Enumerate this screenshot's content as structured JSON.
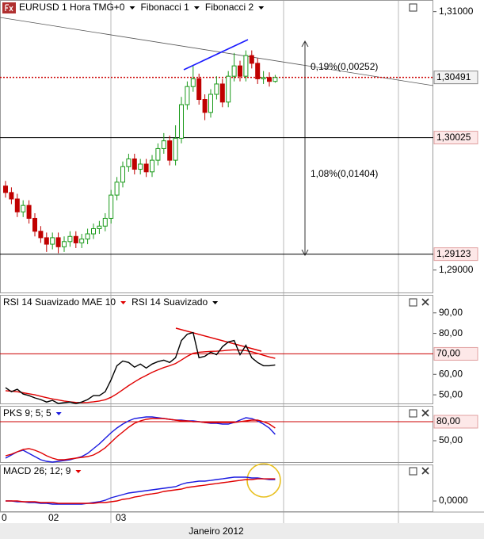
{
  "chart_data": [
    {
      "type": "candlestick",
      "title": "EURUSD 1 Hora TMG+0",
      "menus": [
        "Fibonacci 1",
        "Fibonacci 2"
      ],
      "ylim": [
        1.2882,
        1.3109
      ],
      "yticks": [
        {
          "value": 1.31,
          "label": "1,31000"
        },
        {
          "value": 1.29,
          "label": "1,29000"
        }
      ],
      "up_color": "#1a9a1a",
      "down_color": "#c00000",
      "open": [
        1.2965,
        1.296,
        1.2955,
        1.2945,
        1.295,
        1.294,
        1.293,
        1.2925,
        1.292,
        1.2925,
        1.2918,
        1.2922,
        1.2926,
        1.2921,
        1.2924,
        1.2928,
        1.2932,
        1.2934,
        1.294,
        1.2958,
        1.2968,
        1.298,
        1.2986,
        1.2978,
        1.2982,
        1.2976,
        1.2985,
        1.2994,
        1.3,
        1.2985,
        1.3002,
        1.3028,
        1.3042,
        1.3048,
        1.3032,
        1.3022,
        1.3036,
        1.3044,
        1.303,
        1.305,
        1.3058,
        1.305,
        1.3066,
        1.306,
        1.3048,
        1.3049,
        1.3046
      ],
      "high": [
        1.2969,
        1.2964,
        1.2959,
        1.2954,
        1.2954,
        1.2944,
        1.2934,
        1.2929,
        1.2929,
        1.2929,
        1.2926,
        1.293,
        1.293,
        1.2928,
        1.2932,
        1.2936,
        1.2938,
        1.2944,
        1.2962,
        1.2972,
        1.2984,
        1.299,
        1.299,
        1.2986,
        1.2986,
        1.2989,
        1.2998,
        1.3006,
        1.3004,
        1.3012,
        1.3034,
        1.3046,
        1.3058,
        1.3052,
        1.3036,
        1.304,
        1.305,
        1.3048,
        1.3054,
        1.3068,
        1.3062,
        1.307,
        1.307,
        1.3064,
        1.3054,
        1.3053,
        1.3051
      ],
      "low": [
        1.2956,
        1.2951,
        1.2941,
        1.2941,
        1.2936,
        1.2926,
        1.2921,
        1.2914,
        1.2916,
        1.2913,
        1.2914,
        1.2918,
        1.2917,
        1.2917,
        1.292,
        1.2924,
        1.2928,
        1.293,
        1.2936,
        1.2954,
        1.2964,
        1.2976,
        1.2974,
        1.2974,
        1.2972,
        1.2972,
        1.2981,
        1.299,
        1.2981,
        1.2981,
        1.2998,
        1.3024,
        1.3038,
        1.3028,
        1.3016,
        1.3018,
        1.3032,
        1.3026,
        1.3026,
        1.3046,
        1.3046,
        1.3046,
        1.3056,
        1.3044,
        1.3044,
        1.3042,
        1.3045
      ],
      "close": [
        1.296,
        1.2955,
        1.2945,
        1.295,
        1.294,
        1.293,
        1.2925,
        1.292,
        1.2925,
        1.2918,
        1.2922,
        1.2926,
        1.2921,
        1.2924,
        1.2928,
        1.2932,
        1.2934,
        1.294,
        1.2958,
        1.2968,
        1.298,
        1.2986,
        1.2978,
        1.2982,
        1.2976,
        1.2985,
        1.2994,
        1.3,
        1.2985,
        1.3002,
        1.3028,
        1.3042,
        1.3048,
        1.3032,
        1.3022,
        1.3036,
        1.3044,
        1.303,
        1.305,
        1.3058,
        1.305,
        1.3066,
        1.306,
        1.3048,
        1.3049,
        1.3046,
        1.3049
      ],
      "levels": [
        {
          "value": 1.30491,
          "label": "1,30491",
          "color": "#cc0000",
          "style": "dotted"
        },
        {
          "value": 1.30025,
          "label": "1,30025",
          "color": "#000000",
          "style": "solid"
        },
        {
          "value": 1.29123,
          "label": "1,29123",
          "color": "#000000",
          "style": "solid"
        }
      ],
      "annotations": [
        "0,19%(0,00252)",
        "1,08%(0,01404)"
      ],
      "xtick_labels": [
        "0",
        "02",
        "03"
      ],
      "xlabel": "Janeiro 2012"
    },
    {
      "type": "line",
      "ylim": [
        45.4,
        98.8
      ],
      "yticks": [
        {
          "value": 90,
          "label": "90,00"
        },
        {
          "value": 80,
          "label": "80,00"
        },
        {
          "value": 60,
          "label": "60,00"
        },
        {
          "value": 50,
          "label": "50,00"
        }
      ],
      "levels": [
        {
          "value": 70,
          "label": "70,00",
          "color": "#cc0000",
          "style": "solid"
        }
      ],
      "series": [
        {
          "name": "RSI 14 Suavizado MAE 10",
          "color": "#e00000",
          "values": [
            52,
            51.8,
            51.5,
            51.0,
            50.5,
            50.0,
            49.3,
            48.6,
            48.0,
            47.5,
            47.0,
            46.6,
            46.3,
            46.2,
            46.3,
            46.6,
            47.0,
            47.6,
            48.8,
            50.5,
            52.5,
            54.5,
            56.3,
            58.0,
            59.5,
            61.0,
            62.2,
            63.3,
            64.2,
            65.3,
            67.0,
            68.8,
            70.3,
            70.8,
            71.0,
            71.2,
            71.3,
            71.5,
            71.8,
            72.0,
            71.8,
            71.6,
            71.0,
            70.2,
            69.3,
            68.5,
            67.8
          ]
        },
        {
          "name": "RSI 14 Suavizado",
          "color": "#000000",
          "values": [
            53.5,
            51.5,
            52.7,
            50.4,
            49.6,
            48.5,
            47.7,
            46.5,
            47.3,
            45.8,
            46.2,
            46.5,
            45.8,
            46.5,
            47.7,
            49.6,
            49.6,
            51.5,
            57.3,
            64.2,
            66.5,
            65.8,
            63.5,
            65.0,
            63.1,
            65.0,
            66.2,
            66.9,
            65.8,
            68.1,
            76.5,
            79.6,
            80.4,
            68.1,
            68.8,
            70.8,
            69.6,
            73.5,
            75.8,
            76.5,
            69.6,
            74.2,
            68.1,
            65.8,
            64.2,
            64.2,
            64.6
          ]
        }
      ]
    },
    {
      "type": "line",
      "title": "PKS 9; 5; 5",
      "title_color": "#1a1ae0",
      "ylim": [
        16.25,
        103.75
      ],
      "yticks": [
        {
          "value": 50,
          "label": "50,00"
        }
      ],
      "levels": [
        {
          "value": 80,
          "label": "80,00",
          "color": "#cc0000",
          "style": "solid"
        }
      ],
      "series": [
        {
          "color": "#1a1ae0",
          "values": [
            22.5,
            27.5,
            32.5,
            35,
            30,
            25,
            20,
            17.5,
            16.3,
            17.5,
            18.8,
            20,
            22.5,
            25,
            30,
            37.5,
            45,
            53.8,
            62.5,
            70,
            76.3,
            81.3,
            85,
            86.3,
            87.5,
            87.5,
            86.3,
            85,
            83.8,
            82.5,
            82.5,
            81.3,
            81.3,
            80,
            78.8,
            77.5,
            77.5,
            76.3,
            76.3,
            78.8,
            82.5,
            86.3,
            85,
            81.3,
            76.3,
            70,
            60
          ]
        },
        {
          "color": "#e00000",
          "values": [
            26.3,
            28.8,
            32.5,
            36.3,
            37.5,
            35,
            31.3,
            26.3,
            22.5,
            20,
            20,
            21.3,
            22.5,
            23.8,
            25,
            27.5,
            32.5,
            38.8,
            47.5,
            56.3,
            63.8,
            71.3,
            77.5,
            81.3,
            83.8,
            85,
            85,
            85,
            83.8,
            82.5,
            81.3,
            81.3,
            80,
            80,
            78.8,
            78.8,
            78.8,
            78.8,
            78.8,
            78.8,
            80,
            81.3,
            82.5,
            82.5,
            80,
            76.3,
            70
          ]
        }
      ]
    },
    {
      "type": "line",
      "title": "MACD 26; 12; 9",
      "title_color": "#e00000",
      "ylim": [
        -0.0011,
        0.0039
      ],
      "yticks": [
        {
          "value": 0,
          "label": "0,0000"
        }
      ],
      "series": [
        {
          "color": "#1a1ae0",
          "values": [
            0,
            0,
            -8e-05,
            -8e-05,
            -0.00017,
            -0.00017,
            -0.00025,
            -0.00025,
            -0.00034,
            -0.00034,
            -0.00034,
            -0.00034,
            -0.00034,
            -0.00034,
            -0.00025,
            -0.00017,
            -8e-05,
            8e-05,
            0.00034,
            0.00051,
            0.00068,
            0.00085,
            0.00093,
            0.00102,
            0.0011,
            0.00119,
            0.00127,
            0.00136,
            0.00144,
            0.00153,
            0.00178,
            0.00195,
            0.00203,
            0.00212,
            0.00212,
            0.0022,
            0.00229,
            0.00237,
            0.00246,
            0.00254,
            0.00254,
            0.00254,
            0.00246,
            0.00246,
            0.00237,
            0.00229,
            0.00229
          ]
        },
        {
          "color": "#e00000",
          "values": [
            0,
            0,
            0,
            -8e-05,
            -8e-05,
            -8e-05,
            -0.00017,
            -0.00017,
            -0.00017,
            -0.00025,
            -0.00025,
            -0.00025,
            -0.00025,
            -0.00025,
            -0.00025,
            -0.00025,
            -0.00017,
            -0.00017,
            -8e-05,
            0,
            0.00017,
            0.00025,
            0.00042,
            0.00051,
            0.00068,
            0.00076,
            0.00085,
            0.00102,
            0.0011,
            0.00119,
            0.00127,
            0.00144,
            0.00153,
            0.00161,
            0.00169,
            0.00178,
            0.00186,
            0.00195,
            0.00203,
            0.00212,
            0.0022,
            0.00229,
            0.00229,
            0.00237,
            0.00237,
            0.00237,
            0.00237
          ]
        }
      ]
    }
  ]
}
